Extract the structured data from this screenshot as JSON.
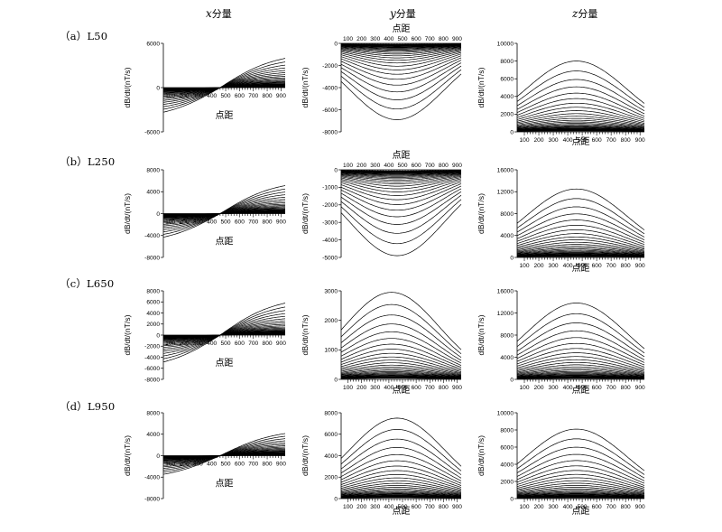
{
  "column_titles": [
    {
      "var": "x",
      "suffix": "分量"
    },
    {
      "var": "y",
      "suffix": "分量"
    },
    {
      "var": "z",
      "suffix": "分量"
    }
  ],
  "row_labels": [
    "（a）L50",
    "（b）L250",
    "（c）L650",
    "（d）L950"
  ],
  "chart_data": [
    {
      "id": "a-x",
      "type": "line",
      "row": 0,
      "col": 0,
      "comp": "x",
      "xlabel": "点距",
      "ylabel": "dB/dt/(nT/s)",
      "ylim": [
        -6000,
        6000
      ],
      "yticks": [
        -6000,
        0,
        6000
      ],
      "xticks": [
        100,
        200,
        300,
        400,
        500,
        600,
        700,
        800,
        900
      ],
      "xlim": [
        50,
        930
      ],
      "x_axis_pos": "middle",
      "curves": 30,
      "peak": 4800,
      "center": 460
    },
    {
      "id": "a-y",
      "type": "line",
      "row": 0,
      "col": 1,
      "comp": "y",
      "xlabel": "点距",
      "ylabel": "dB/dt/(nT/s)",
      "ylim": [
        -8000,
        0
      ],
      "yticks": [
        -8000,
        -6000,
        -4000,
        -2000,
        0
      ],
      "xticks": [
        100,
        200,
        300,
        400,
        500,
        600,
        700,
        800,
        900
      ],
      "xlim": [
        50,
        930
      ],
      "x_axis_pos": "top",
      "curves": 30,
      "peak": -6900,
      "center": 460
    },
    {
      "id": "a-z",
      "type": "line",
      "row": 0,
      "col": 2,
      "comp": "z",
      "xlabel": "点距",
      "ylabel": "dB/dt/(nT/s)",
      "ylim": [
        0,
        10000
      ],
      "yticks": [
        0,
        2000,
        4000,
        6000,
        8000,
        10000
      ],
      "xticks": [
        100,
        200,
        300,
        400,
        500,
        600,
        700,
        800,
        900
      ],
      "xlim": [
        50,
        930
      ],
      "x_axis_pos": "bottom",
      "curves": 30,
      "peak": 8000,
      "center": 460
    },
    {
      "id": "b-x",
      "type": "line",
      "row": 1,
      "col": 0,
      "comp": "x",
      "xlabel": "点距",
      "ylabel": "dB/dt/(nT/s)",
      "ylim": [
        -8000,
        8000
      ],
      "yticks": [
        -8000,
        -4000,
        0,
        4000,
        8000
      ],
      "xticks": [
        100,
        200,
        300,
        400,
        500,
        600,
        700,
        800,
        900
      ],
      "xlim": [
        50,
        930
      ],
      "x_axis_pos": "middle",
      "curves": 30,
      "peak": 6200,
      "center": 460
    },
    {
      "id": "b-y",
      "type": "line",
      "row": 1,
      "col": 1,
      "comp": "y",
      "xlabel": "点距",
      "ylabel": "dB/dt/(nT/s)",
      "ylim": [
        -5000,
        0
      ],
      "yticks": [
        -5000,
        -4000,
        -3000,
        -2000,
        -1000,
        0
      ],
      "xticks": [
        100,
        200,
        300,
        400,
        500,
        600,
        700,
        800,
        900
      ],
      "xlim": [
        50,
        930
      ],
      "x_axis_pos": "top",
      "curves": 30,
      "peak": -4900,
      "center": 460
    },
    {
      "id": "b-z",
      "type": "line",
      "row": 1,
      "col": 2,
      "comp": "z",
      "xlabel": "点距",
      "ylabel": "dB/dt/(nT/s)",
      "ylim": [
        0,
        16000
      ],
      "yticks": [
        0,
        4000,
        8000,
        12000,
        16000
      ],
      "xticks": [
        100,
        200,
        300,
        400,
        500,
        600,
        700,
        800,
        900
      ],
      "xlim": [
        50,
        930
      ],
      "x_axis_pos": "bottom",
      "curves": 30,
      "peak": 12500,
      "center": 460
    },
    {
      "id": "c-x",
      "type": "line",
      "row": 2,
      "col": 0,
      "comp": "x",
      "xlabel": "点距",
      "ylabel": "dB/dt/(nT/s)",
      "ylim": [
        -8000,
        8000
      ],
      "yticks": [
        -8000,
        -6000,
        -4000,
        -2000,
        0,
        2000,
        4000,
        6000,
        8000
      ],
      "xticks": [
        100,
        200,
        300,
        400,
        500,
        600,
        700,
        800,
        900
      ],
      "xlim": [
        50,
        930
      ],
      "x_axis_pos": "middle",
      "curves": 30,
      "peak": 7000,
      "center": 460
    },
    {
      "id": "c-y",
      "type": "line",
      "row": 2,
      "col": 1,
      "comp": "y",
      "xlabel": "点距",
      "ylabel": "dB/dt/(nT/s)",
      "ylim": [
        0,
        3000
      ],
      "yticks": [
        0,
        1000,
        2000,
        3000
      ],
      "xticks": [
        100,
        200,
        300,
        400,
        500,
        600,
        700,
        800,
        900
      ],
      "xlim": [
        50,
        930
      ],
      "x_axis_pos": "bottom",
      "curves": 30,
      "peak": 2950,
      "center": 420
    },
    {
      "id": "c-z",
      "type": "line",
      "row": 2,
      "col": 2,
      "comp": "z",
      "xlabel": "点距",
      "ylabel": "dB/dt/(nT/s)",
      "ylim": [
        0,
        16000
      ],
      "yticks": [
        0,
        4000,
        8000,
        12000,
        16000
      ],
      "xticks": [
        100,
        200,
        300,
        400,
        500,
        600,
        700,
        800,
        900
      ],
      "xlim": [
        50,
        930
      ],
      "x_axis_pos": "bottom",
      "curves": 30,
      "peak": 13800,
      "center": 460
    },
    {
      "id": "d-x",
      "type": "line",
      "row": 3,
      "col": 0,
      "comp": "x",
      "xlabel": "点距",
      "ylabel": "dB/dt/(nT/s)",
      "ylim": [
        -8000,
        8000
      ],
      "yticks": [
        -8000,
        -4000,
        0,
        4000,
        8000
      ],
      "xticks": [
        100,
        200,
        300,
        400,
        500,
        600,
        700,
        800,
        900
      ],
      "xlim": [
        50,
        930
      ],
      "x_axis_pos": "middle",
      "curves": 30,
      "peak": 5000,
      "center": 460
    },
    {
      "id": "d-y",
      "type": "line",
      "row": 3,
      "col": 1,
      "comp": "y",
      "xlabel": "点距",
      "ylabel": "dB/dt/(nT/s)",
      "ylim": [
        0,
        8000
      ],
      "yticks": [
        0,
        2000,
        4000,
        6000,
        8000
      ],
      "xticks": [
        100,
        200,
        300,
        400,
        500,
        600,
        700,
        800,
        900
      ],
      "xlim": [
        50,
        930
      ],
      "x_axis_pos": "bottom",
      "curves": 30,
      "peak": 7500,
      "center": 460
    },
    {
      "id": "d-z",
      "type": "line",
      "row": 3,
      "col": 2,
      "comp": "z",
      "xlabel": "点距",
      "ylabel": "dB/dt/(nT/s)",
      "ylim": [
        0,
        10000
      ],
      "yticks": [
        0,
        2000,
        4000,
        6000,
        8000,
        10000
      ],
      "xticks": [
        100,
        200,
        300,
        400,
        500,
        600,
        700,
        800,
        900
      ],
      "xlim": [
        50,
        930
      ],
      "x_axis_pos": "bottom",
      "curves": 30,
      "peak": 8100,
      "center": 460
    }
  ]
}
